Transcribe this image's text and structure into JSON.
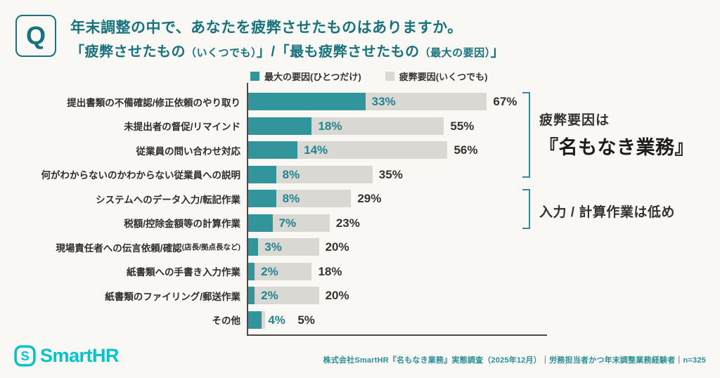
{
  "header": {
    "q_badge": "Q",
    "title_line1": "年末調整の中で、あなたを疲弊させたものはありますか。",
    "title_line2_segments": [
      {
        "text": "「疲弊させたもの",
        "small": false
      },
      {
        "text": "（いくつでも）",
        "small": true
      },
      {
        "text": "」/「最も疲弊させたもの",
        "small": false
      },
      {
        "text": "（最大の要因）",
        "small": true
      },
      {
        "text": "」",
        "small": false
      }
    ]
  },
  "legend": [
    {
      "label": "最大の要因(ひとつだけ)",
      "color": "#33959c"
    },
    {
      "label": "疲弊要因(いくつでも)",
      "color": "#d9d8d3"
    }
  ],
  "chart_data": {
    "type": "bar",
    "orientation": "horizontal",
    "unit": "%",
    "categories": [
      "提出書類の不備確認/修正依頼のやり取り",
      "未提出者の督促/リマインド",
      "従業員の問い合わせ対応",
      "何がわからないのかわからない従業員への説明",
      "システムへのデータ入力/転記作業",
      "税額/控除金額等の計算作業",
      "現場責任者への伝言依頼/確認(店長/拠点長など)",
      "紙書類への手書き入力作業",
      "紙書類のファイリング/郵送作業",
      "その他"
    ],
    "series": [
      {
        "name": "最大の要因(ひとつだけ)",
        "color": "#33959c",
        "values": [
          33,
          18,
          14,
          8,
          8,
          7,
          3,
          2,
          2,
          4
        ]
      },
      {
        "name": "疲弊要因(いくつでも)",
        "color": "#d9d8d3",
        "values": [
          67,
          55,
          56,
          35,
          29,
          23,
          20,
          18,
          20,
          5
        ]
      }
    ],
    "value_suffix": "%",
    "xlim": [
      0,
      84
    ],
    "grid": false,
    "legend_position": "top"
  },
  "annotations": [
    {
      "line1": "疲弊要因は",
      "line2": "『名もなき業務』",
      "target_rows": "1-4"
    },
    {
      "line1": "入力 / 計算作業は低め",
      "target_rows": "5-6"
    }
  ],
  "footer": {
    "logo_text": "SmartHR",
    "source": "株式会社SmartHR『名もなき業務』実態調査（2025年12月）｜労務担当者かつ年末調整業務経験者｜n=325"
  },
  "colors": {
    "background": "#faf8f4",
    "title_teal": "#17727e",
    "bar_teal": "#33959c",
    "bar_gray": "#d9d8d3",
    "value_teal": "#21848f",
    "value_dark": "#333333",
    "axis": "#4a4a4a",
    "bracket_teal": "#2a8f98",
    "logo_cyan": "#00c4cc"
  }
}
